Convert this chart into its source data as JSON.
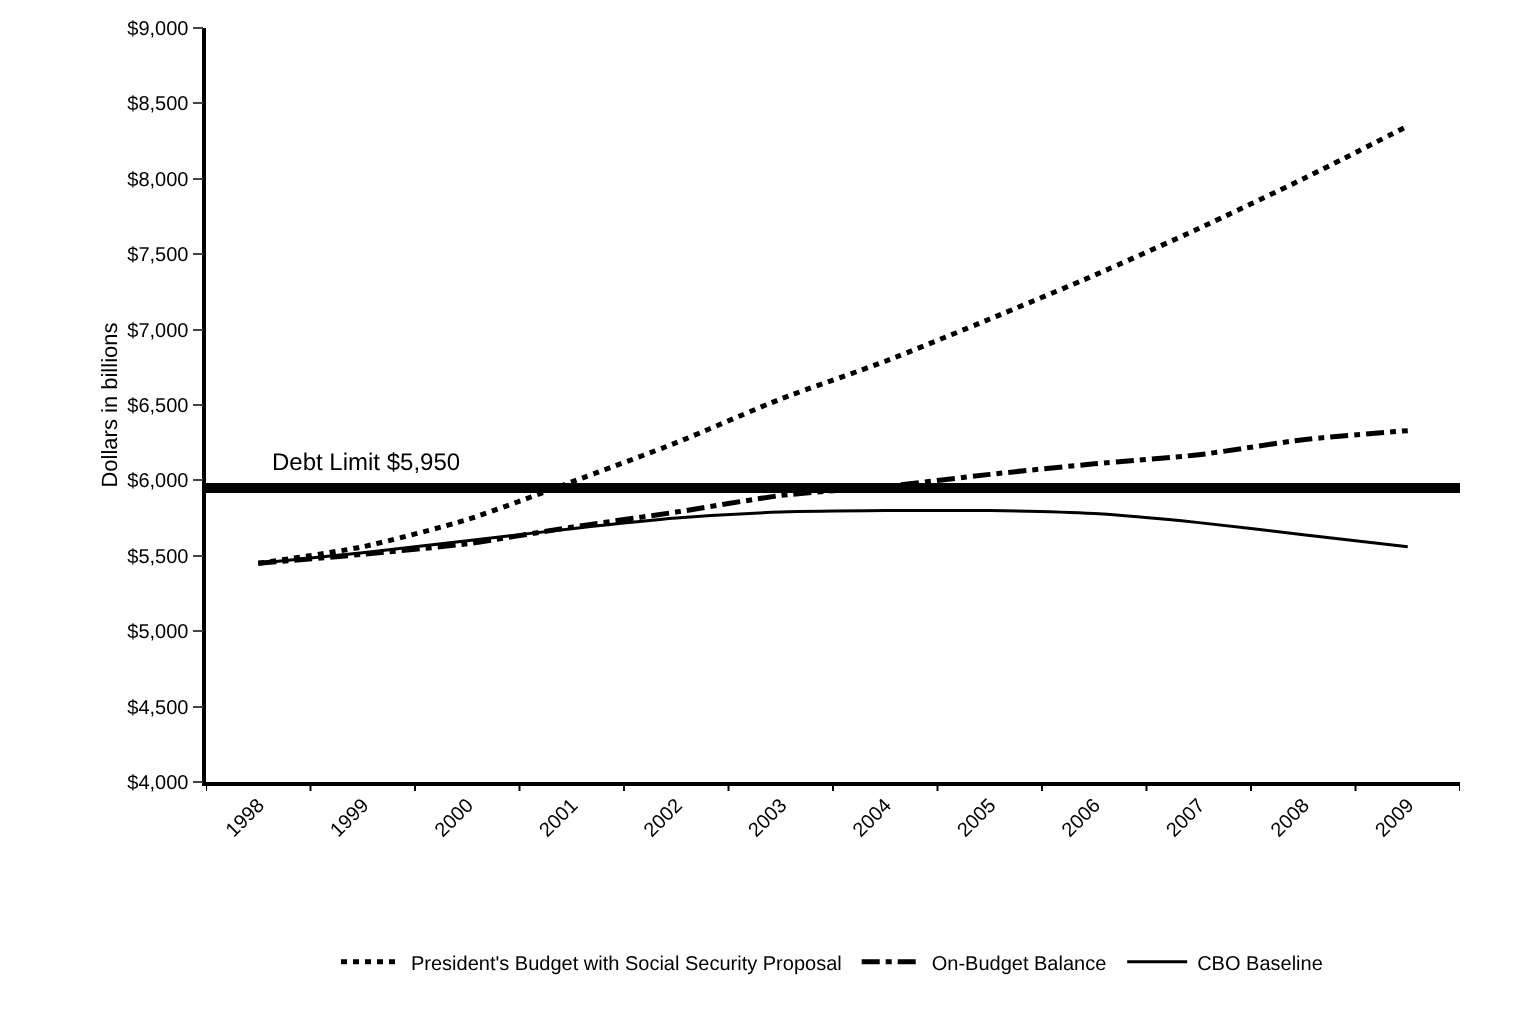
{
  "chart_data": {
    "type": "line",
    "ylabel": "Dollars in billions",
    "categories": [
      "1998",
      "1999",
      "2000",
      "2001",
      "2002",
      "2003",
      "2004",
      "2005",
      "2006",
      "2007",
      "2008",
      "2009"
    ],
    "series": [
      {
        "name": "President's Budget with Social Security Proposal",
        "color": "#000000",
        "line_style": "dotted",
        "values": [
          5450,
          5560,
          5740,
          5990,
          6250,
          6540,
          6790,
          7070,
          7360,
          7670,
          8000,
          8350
        ]
      },
      {
        "name": "On-Budget Balance",
        "color": "#000000",
        "line_style": "dashed",
        "values": [
          5450,
          5510,
          5580,
          5690,
          5790,
          5900,
          5960,
          6040,
          6110,
          6170,
          6270,
          6330
        ]
      },
      {
        "name": "CBO Baseline",
        "color": "#000000",
        "line_style": "solid",
        "values": [
          5450,
          5520,
          5600,
          5680,
          5750,
          5790,
          5800,
          5800,
          5780,
          5720,
          5640,
          5560
        ]
      }
    ],
    "ylim": [
      4000,
      9000
    ],
    "yticks": [
      {
        "value": 4000,
        "label": "$4,000"
      },
      {
        "value": 4500,
        "label": "$4,500"
      },
      {
        "value": 5000,
        "label": "$5,000"
      },
      {
        "value": 5500,
        "label": "$5,500"
      },
      {
        "value": 6000,
        "label": "$6,000"
      },
      {
        "value": 6500,
        "label": "$6,500"
      },
      {
        "value": 7000,
        "label": "$7,000"
      },
      {
        "value": 7500,
        "label": "$7,500"
      },
      {
        "value": 8000,
        "label": "$8,000"
      },
      {
        "value": 8500,
        "label": "$8,500"
      },
      {
        "value": 9000,
        "label": "$9,000"
      }
    ],
    "ref_lines": [
      {
        "axis": "y",
        "value": 5950,
        "label": "Debt Limit $5,950",
        "color": "#000000",
        "line_style": "solid"
      }
    ],
    "grid": false,
    "legend": "bottom",
    "marker": "none"
  }
}
